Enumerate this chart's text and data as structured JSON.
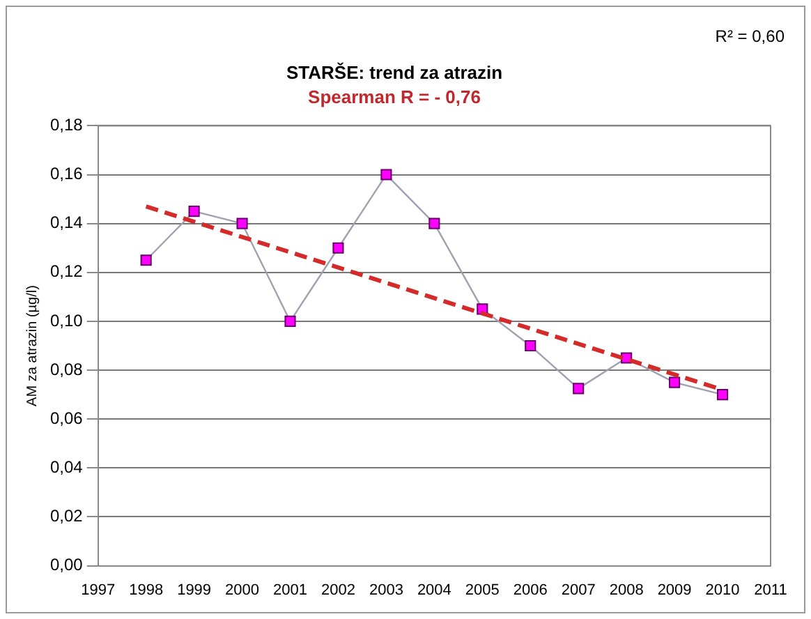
{
  "chart_data": {
    "type": "line",
    "title": "STARŠE: trend za atrazin",
    "subtitle": "Spearman R = - 0,76",
    "ylabel": "AM za atrazin (µg/l)",
    "annotations": [
      "R² = 0,60"
    ],
    "series": [
      {
        "type": "line",
        "color": "#ff00ff",
        "x": [
          1998,
          1999,
          2000,
          2001,
          2002,
          2003,
          2004,
          2005,
          2006,
          2007,
          2008,
          2009,
          2010
        ],
        "values": [
          0.125,
          0.145,
          0.14,
          0.1,
          0.13,
          0.16,
          0.14,
          0.105,
          0.09,
          0.0725,
          0.085,
          0.075,
          0.07
        ],
        "marker": "square",
        "line_style": "solid"
      },
      {
        "type": "line",
        "color": "#d42a2a",
        "x": [
          1998,
          2010
        ],
        "values": [
          0.147,
          0.072
        ],
        "marker": "none",
        "line_style": "dashed"
      }
    ],
    "xlim": [
      1997,
      2011
    ],
    "xticks": [
      1997,
      1998,
      1999,
      2000,
      2001,
      2002,
      2003,
      2004,
      2005,
      2006,
      2007,
      2008,
      2009,
      2010,
      2011
    ],
    "ylim": [
      0,
      0.18
    ],
    "yticks": [
      {
        "value": 0,
        "label": "0,00"
      },
      {
        "value": 0.02,
        "label": "0,02"
      },
      {
        "value": 0.04,
        "label": "0,04"
      },
      {
        "value": 0.06,
        "label": "0,06"
      },
      {
        "value": 0.08,
        "label": "0,08"
      },
      {
        "value": 0.1,
        "label": "0,10"
      },
      {
        "value": 0.12,
        "label": "0,12"
      },
      {
        "value": 0.14,
        "label": "0,14"
      },
      {
        "value": 0.16,
        "label": "0,16"
      },
      {
        "value": 0.18,
        "label": "0,18"
      }
    ],
    "grid": "y",
    "legend": false
  }
}
